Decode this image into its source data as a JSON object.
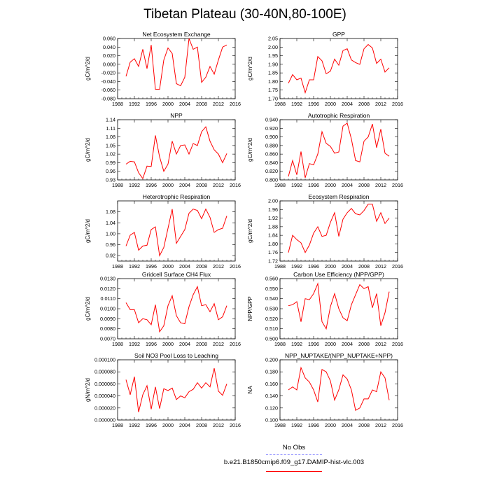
{
  "page": {
    "title": "Tibetan Plateau (30-40N,80-100E)"
  },
  "legend": {
    "entries": [
      {
        "label": "No Obs",
        "color": "#9999ff",
        "dash": true
      },
      {
        "label": "b.e21.B1850cmip6.f09_g17.DAMIP-hist-vlc.003",
        "color": "#ff0000",
        "dash": false
      }
    ]
  },
  "chart_data": [
    {
      "type": "line",
      "title": "Net Ecosystem Exchange",
      "ylabel": "gC/m^2/d",
      "xlim": [
        1988,
        2016
      ],
      "xticks": [
        1988,
        1992,
        1996,
        2000,
        2004,
        2008,
        2012,
        2016
      ],
      "ylim": [
        -0.08,
        0.06
      ],
      "ytick_labels": [
        "0.060",
        "0.040",
        "0.020",
        "0.000",
        "-0.020",
        "-0.040",
        "-0.060",
        "-0.080"
      ],
      "x": [
        1990,
        1991,
        1992,
        1993,
        1994,
        1995,
        1996,
        1997,
        1998,
        1999,
        2000,
        2001,
        2002,
        2003,
        2004,
        2005,
        2006,
        2007,
        2008,
        2009,
        2010,
        2011,
        2012,
        2013,
        2014
      ],
      "series": [
        {
          "values": [
            -0.028,
            0.005,
            0.013,
            -0.005,
            0.035,
            -0.01,
            0.045,
            -0.058,
            -0.058,
            0.01,
            0.038,
            0.025,
            -0.045,
            -0.05,
            -0.03,
            0.06,
            0.035,
            0.04,
            -0.042,
            -0.03,
            -0.005,
            -0.023,
            0.01,
            0.04,
            0.045
          ]
        }
      ]
    },
    {
      "type": "line",
      "title": "GPP",
      "ylabel": "gC/m^2/d",
      "xlim": [
        1988,
        2016
      ],
      "xticks": [
        1988,
        1992,
        1996,
        2000,
        2004,
        2008,
        2012,
        2016
      ],
      "ylim": [
        1.7,
        2.05
      ],
      "ytick_labels": [
        "2.05",
        "2.00",
        "1.95",
        "1.90",
        "1.85",
        "1.80",
        "1.75",
        "1.70"
      ],
      "x": [
        1990,
        1991,
        1992,
        1993,
        1994,
        1995,
        1996,
        1997,
        1998,
        1999,
        2000,
        2001,
        2002,
        2003,
        2004,
        2005,
        2006,
        2007,
        2008,
        2009,
        2010,
        2011,
        2012,
        2013,
        2014
      ],
      "series": [
        {
          "values": [
            1.79,
            1.84,
            1.81,
            1.82,
            1.735,
            1.81,
            1.81,
            1.945,
            1.92,
            1.845,
            1.86,
            1.93,
            1.895,
            1.98,
            1.99,
            1.925,
            1.91,
            1.9,
            1.99,
            2.015,
            1.995,
            1.905,
            1.93,
            1.855,
            1.88
          ]
        }
      ]
    },
    {
      "type": "line",
      "title": "NPP",
      "ylabel": "gC/m^2/d",
      "xlim": [
        1988,
        2016
      ],
      "xticks": [
        1988,
        1992,
        1996,
        2000,
        2004,
        2008,
        2012,
        2016
      ],
      "ylim": [
        0.93,
        1.14
      ],
      "ytick_labels": [
        "1.14",
        "1.11",
        "1.08",
        "1.05",
        "1.02",
        "0.99",
        "0.96",
        "0.93"
      ],
      "x": [
        1990,
        1991,
        1992,
        1993,
        1994,
        1995,
        1996,
        1997,
        1998,
        1999,
        2000,
        2001,
        2002,
        2003,
        2004,
        2005,
        2006,
        2007,
        2008,
        2009,
        2010,
        2011,
        2012,
        2013,
        2014
      ],
      "series": [
        {
          "values": [
            0.985,
            0.995,
            0.993,
            0.955,
            0.935,
            0.978,
            0.977,
            1.085,
            1.01,
            0.96,
            0.985,
            1.065,
            1.02,
            1.05,
            1.052,
            1.02,
            1.057,
            1.05,
            1.098,
            1.115,
            1.065,
            1.035,
            1.02,
            0.99,
            1.022
          ]
        }
      ]
    },
    {
      "type": "line",
      "title": "Autotrophic Respiration",
      "ylabel": "gC/m^2/d",
      "xlim": [
        1988,
        2016
      ],
      "xticks": [
        1988,
        1992,
        1996,
        2000,
        2004,
        2008,
        2012,
        2016
      ],
      "ylim": [
        0.8,
        0.94
      ],
      "ytick_labels": [
        "0.940",
        "0.920",
        "0.900",
        "0.880",
        "0.860",
        "0.840",
        "0.820",
        "0.800"
      ],
      "x": [
        1990,
        1991,
        1992,
        1993,
        1994,
        1995,
        1996,
        1997,
        1998,
        1999,
        2000,
        2001,
        2002,
        2003,
        2004,
        2005,
        2006,
        2007,
        2008,
        2009,
        2010,
        2011,
        2012,
        2013,
        2014
      ],
      "series": [
        {
          "values": [
            0.808,
            0.845,
            0.812,
            0.866,
            0.805,
            0.838,
            0.835,
            0.86,
            0.912,
            0.885,
            0.878,
            0.862,
            0.865,
            0.925,
            0.932,
            0.895,
            0.845,
            0.842,
            0.89,
            0.9,
            0.93,
            0.875,
            0.918,
            0.862,
            0.855
          ]
        }
      ]
    },
    {
      "type": "line",
      "title": "Heterotrophic Respiration",
      "ylabel": "gC/m^2/d",
      "xlim": [
        1988,
        2016
      ],
      "xticks": [
        1988,
        1992,
        1996,
        2000,
        2004,
        2008,
        2012,
        2016
      ],
      "ylim": [
        0.9,
        1.12
      ],
      "ytick_labels": [
        "1.08",
        "1.04",
        "1.00",
        "0.96",
        "0.92"
      ],
      "ytick_values": [
        1.08,
        1.04,
        1.0,
        0.96,
        0.92
      ],
      "x": [
        1990,
        1991,
        1992,
        1993,
        1994,
        1995,
        1996,
        1997,
        1998,
        1999,
        2000,
        2001,
        2002,
        2003,
        2004,
        2005,
        2006,
        2007,
        2008,
        2009,
        2010,
        2011,
        2012,
        2013,
        2014
      ],
      "series": [
        {
          "values": [
            0.955,
            0.995,
            1.005,
            0.94,
            0.955,
            0.958,
            1.015,
            1.025,
            0.92,
            0.95,
            1.02,
            1.09,
            0.965,
            0.99,
            1.015,
            1.075,
            1.09,
            1.085,
            1.055,
            1.09,
            1.06,
            1.005,
            1.015,
            1.02,
            1.065
          ]
        }
      ]
    },
    {
      "type": "line",
      "title": "Ecosystem Respiration",
      "ylabel": "gC/m^2/d",
      "xlim": [
        1988,
        2016
      ],
      "xticks": [
        1988,
        1992,
        1996,
        2000,
        2004,
        2008,
        2012,
        2016
      ],
      "ylim": [
        1.72,
        2.0
      ],
      "ytick_labels": [
        "2.00",
        "1.96",
        "1.92",
        "1.88",
        "1.84",
        "1.80",
        "1.76",
        "1.72"
      ],
      "x": [
        1990,
        1991,
        1992,
        1993,
        1994,
        1995,
        1996,
        1997,
        1998,
        1999,
        2000,
        2001,
        2002,
        2003,
        2004,
        2005,
        2006,
        2007,
        2008,
        2009,
        2010,
        2011,
        2012,
        2013,
        2014
      ],
      "series": [
        {
          "values": [
            1.76,
            1.84,
            1.82,
            1.805,
            1.76,
            1.795,
            1.85,
            1.88,
            1.835,
            1.84,
            1.9,
            1.945,
            1.835,
            1.915,
            1.945,
            1.965,
            1.94,
            1.935,
            1.955,
            1.985,
            1.985,
            1.905,
            1.945,
            1.895,
            1.92
          ]
        }
      ]
    },
    {
      "type": "line",
      "title": "Gridcell Surface CH4 Flux",
      "ylabel": "gC/m^2/d",
      "xlim": [
        1988,
        2016
      ],
      "xticks": [
        1988,
        1992,
        1996,
        2000,
        2004,
        2008,
        2012,
        2016
      ],
      "ylim": [
        0.007,
        0.013
      ],
      "ytick_labels": [
        "0.0130",
        "0.0120",
        "0.0110",
        "0.0100",
        "0.0090",
        "0.0080",
        "0.0070"
      ],
      "x": [
        1990,
        1991,
        1992,
        1993,
        1994,
        1995,
        1996,
        1997,
        1998,
        1999,
        2000,
        2001,
        2002,
        2003,
        2004,
        2005,
        2006,
        2007,
        2008,
        2009,
        2010,
        2011,
        2012,
        2013,
        2014
      ],
      "series": [
        {
          "values": [
            0.0106,
            0.0099,
            0.0099,
            0.0086,
            0.009,
            0.0089,
            0.0084,
            0.0104,
            0.0077,
            0.0083,
            0.0103,
            0.0113,
            0.0093,
            0.0086,
            0.0085,
            0.0102,
            0.0114,
            0.0122,
            0.0103,
            0.0104,
            0.0097,
            0.0105,
            0.0089,
            0.0092,
            0.0103
          ]
        }
      ]
    },
    {
      "type": "line",
      "title": "Carbon Use Efficiency (NPP/GPP)",
      "ylabel": "NPP/GPP",
      "xlim": [
        1988,
        2016
      ],
      "xticks": [
        1988,
        1992,
        1996,
        2000,
        2004,
        2008,
        2012,
        2016
      ],
      "ylim": [
        0.5,
        0.56
      ],
      "ytick_labels": [
        "0.560",
        "0.550",
        "0.540",
        "0.530",
        "0.520",
        "0.510",
        "0.500"
      ],
      "x": [
        1990,
        1991,
        1992,
        1993,
        1994,
        1995,
        1996,
        1997,
        1998,
        1999,
        2000,
        2001,
        2002,
        2003,
        2004,
        2005,
        2006,
        2007,
        2008,
        2009,
        2010,
        2011,
        2012,
        2013,
        2014
      ],
      "series": [
        {
          "values": [
            0.533,
            0.534,
            0.537,
            0.517,
            0.54,
            0.539,
            0.545,
            0.555,
            0.517,
            0.51,
            0.532,
            0.545,
            0.53,
            0.521,
            0.518,
            0.534,
            0.544,
            0.554,
            0.55,
            0.552,
            0.531,
            0.545,
            0.513,
            0.526,
            0.547
          ]
        }
      ]
    },
    {
      "type": "line",
      "title": "Soil NO3 Pool Loss to Leaching",
      "ylabel": "gN/m^2/d",
      "xlim": [
        1988,
        2016
      ],
      "xticks": [
        1988,
        1992,
        1996,
        2000,
        2004,
        2008,
        2012,
        2016
      ],
      "ylim": [
        0.0,
        0.0001
      ],
      "ytick_labels": [
        "0.000100",
        "0.000080",
        "0.000060",
        "0.000040",
        "0.000020",
        "0.000000"
      ],
      "x": [
        1990,
        1991,
        1992,
        1993,
        1994,
        1995,
        1996,
        1997,
        1998,
        1999,
        2000,
        2001,
        2002,
        2003,
        2004,
        2005,
        2006,
        2007,
        2008,
        2009,
        2010,
        2011,
        2012,
        2013,
        2014
      ],
      "series": [
        {
          "values": [
            6.7e-05,
            4.2e-05,
            7.2e-05,
            1.3e-05,
            4.2e-05,
            5.7e-05,
            1.8e-05,
            5.5e-05,
            1.9e-05,
            5.2e-05,
            4.9e-05,
            5.3e-05,
            3.4e-05,
            4e-05,
            3.7e-05,
            4.7e-05,
            5.1e-05,
            6.2e-05,
            5.3e-05,
            6.2e-05,
            5.5e-05,
            8.6e-05,
            4.8e-05,
            4.1e-05,
            6e-05
          ]
        }
      ]
    },
    {
      "type": "line",
      "title": "NPP_NUPTAKE/(NPP_NUPTAKE+NPP)",
      "ylabel": "NA",
      "xlim": [
        1988,
        2016
      ],
      "xticks": [
        1988,
        1992,
        1996,
        2000,
        2004,
        2008,
        2012,
        2016
      ],
      "ylim": [
        0.1,
        0.2
      ],
      "ytick_labels": [
        "0.200",
        "0.180",
        "0.160",
        "0.140",
        "0.120",
        "0.100"
      ],
      "x": [
        1990,
        1991,
        1992,
        1993,
        1994,
        1995,
        1996,
        1997,
        1998,
        1999,
        2000,
        2001,
        2002,
        2003,
        2004,
        2005,
        2006,
        2007,
        2008,
        2009,
        2010,
        2011,
        2012,
        2013,
        2014
      ],
      "series": [
        {
          "values": [
            0.15,
            0.155,
            0.15,
            0.187,
            0.17,
            0.163,
            0.15,
            0.13,
            0.184,
            0.18,
            0.165,
            0.133,
            0.15,
            0.175,
            0.168,
            0.15,
            0.116,
            0.12,
            0.135,
            0.135,
            0.15,
            0.147,
            0.18,
            0.17,
            0.133
          ]
        }
      ]
    }
  ]
}
